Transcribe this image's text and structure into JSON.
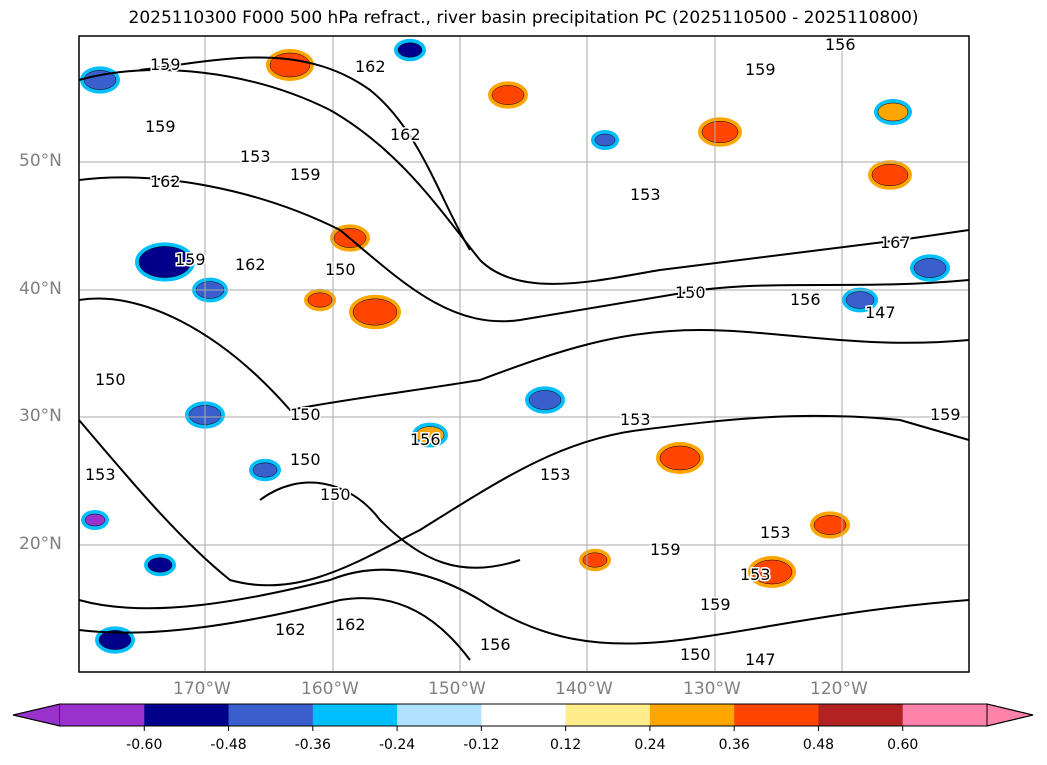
{
  "title": "2025110300 F000 500 hPa refract., river basin precipitation PC (2025110500 - 2025110800)",
  "lat_labels": [
    "50°N",
    "40°N",
    "30°N",
    "20°N"
  ],
  "lon_labels": [
    "170°W",
    "160°W",
    "150°W",
    "140°W",
    "130°W",
    "120°W"
  ],
  "contour_labels": [
    "159",
    "162",
    "159",
    "156",
    "159",
    "153",
    "159",
    "162",
    "162",
    "153",
    "167",
    "159",
    "162",
    "150",
    "156",
    "150",
    "147",
    "150",
    "150",
    "153",
    "156",
    "153",
    "150",
    "153",
    "150",
    "153",
    "159",
    "153",
    "159",
    "162",
    "162",
    "156",
    "150",
    "147",
    "159"
  ],
  "colorbar": {
    "ticks": [
      "-0.60",
      "-0.48",
      "-0.36",
      "-0.24",
      "-0.12",
      "0.12",
      "0.24",
      "0.36",
      "0.48",
      "0.60"
    ],
    "colors": [
      "#9932cc",
      "#00008b",
      "#3a5fcd",
      "#00bfff",
      "#b0e2ff",
      "#ffffff",
      "#ffec8b",
      "#ffa500",
      "#ff4500",
      "#b22222",
      "#ff82ab"
    ]
  }
}
